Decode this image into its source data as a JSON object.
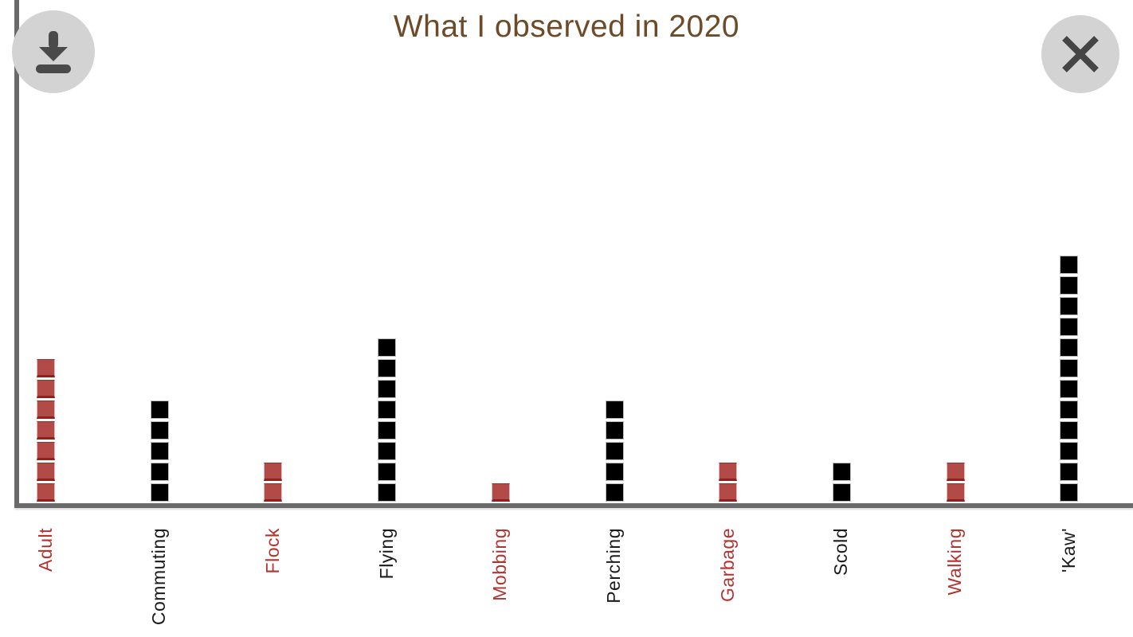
{
  "header": {
    "title": "What I observed in 2020",
    "download_button_label": "download chart",
    "close_button_label": "close chart"
  },
  "chart_data": {
    "type": "bar",
    "subtype": "unit-square-pictograph",
    "title": "What I observed in 2020",
    "categories": [
      "Adult",
      "Commuting",
      "Flock",
      "Flying",
      "Mobbing",
      "Perching",
      "Garbage",
      "Scold",
      "Walking",
      "'Kaw'"
    ],
    "values": [
      7,
      5,
      2,
      8,
      1,
      5,
      2,
      2,
      2,
      12
    ],
    "color_keys": [
      "red",
      "black",
      "red",
      "black",
      "red",
      "black",
      "red",
      "black",
      "red",
      "black"
    ],
    "xlabel": "",
    "ylabel": "",
    "ylim": [
      0,
      12
    ],
    "grid": false,
    "legend": false,
    "x_label_rotation_deg": -90,
    "palette": {
      "red_square": "#b24a47",
      "red_square_edge": "#8e201e",
      "black_square": "#000000",
      "red_label": "#b23431",
      "black_label": "#1b1b1b",
      "axis_gray": "#6a6a6a",
      "title_brown": "#6d4a28",
      "button_background": "#d3d3d3",
      "button_icon": "#4a4a4a"
    }
  }
}
